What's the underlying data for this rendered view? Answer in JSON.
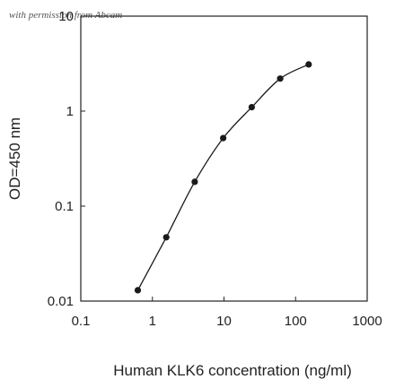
{
  "watermark": "with permission from Abcam",
  "chart_data": {
    "type": "line",
    "title": "",
    "xlabel": "Human KLK6 concentration (ng/ml)",
    "ylabel": "OD=450 nm",
    "x_scale": "log",
    "y_scale": "log",
    "xlim": [
      0.1,
      1000
    ],
    "ylim": [
      0.01,
      10
    ],
    "x_ticks": [
      "0.1",
      "1",
      "10",
      "100",
      "1000"
    ],
    "y_ticks": [
      "0.01",
      "0.1",
      "1",
      "10"
    ],
    "grid": false,
    "legend": "none",
    "series": [
      {
        "x": [
          0.625,
          1.56,
          3.9,
          9.75,
          24.4,
          61,
          152
        ],
        "y": [
          0.013,
          0.047,
          0.18,
          0.52,
          1.1,
          2.2,
          3.1
        ],
        "marker": "circle",
        "color": "#1a1a1a"
      }
    ]
  }
}
